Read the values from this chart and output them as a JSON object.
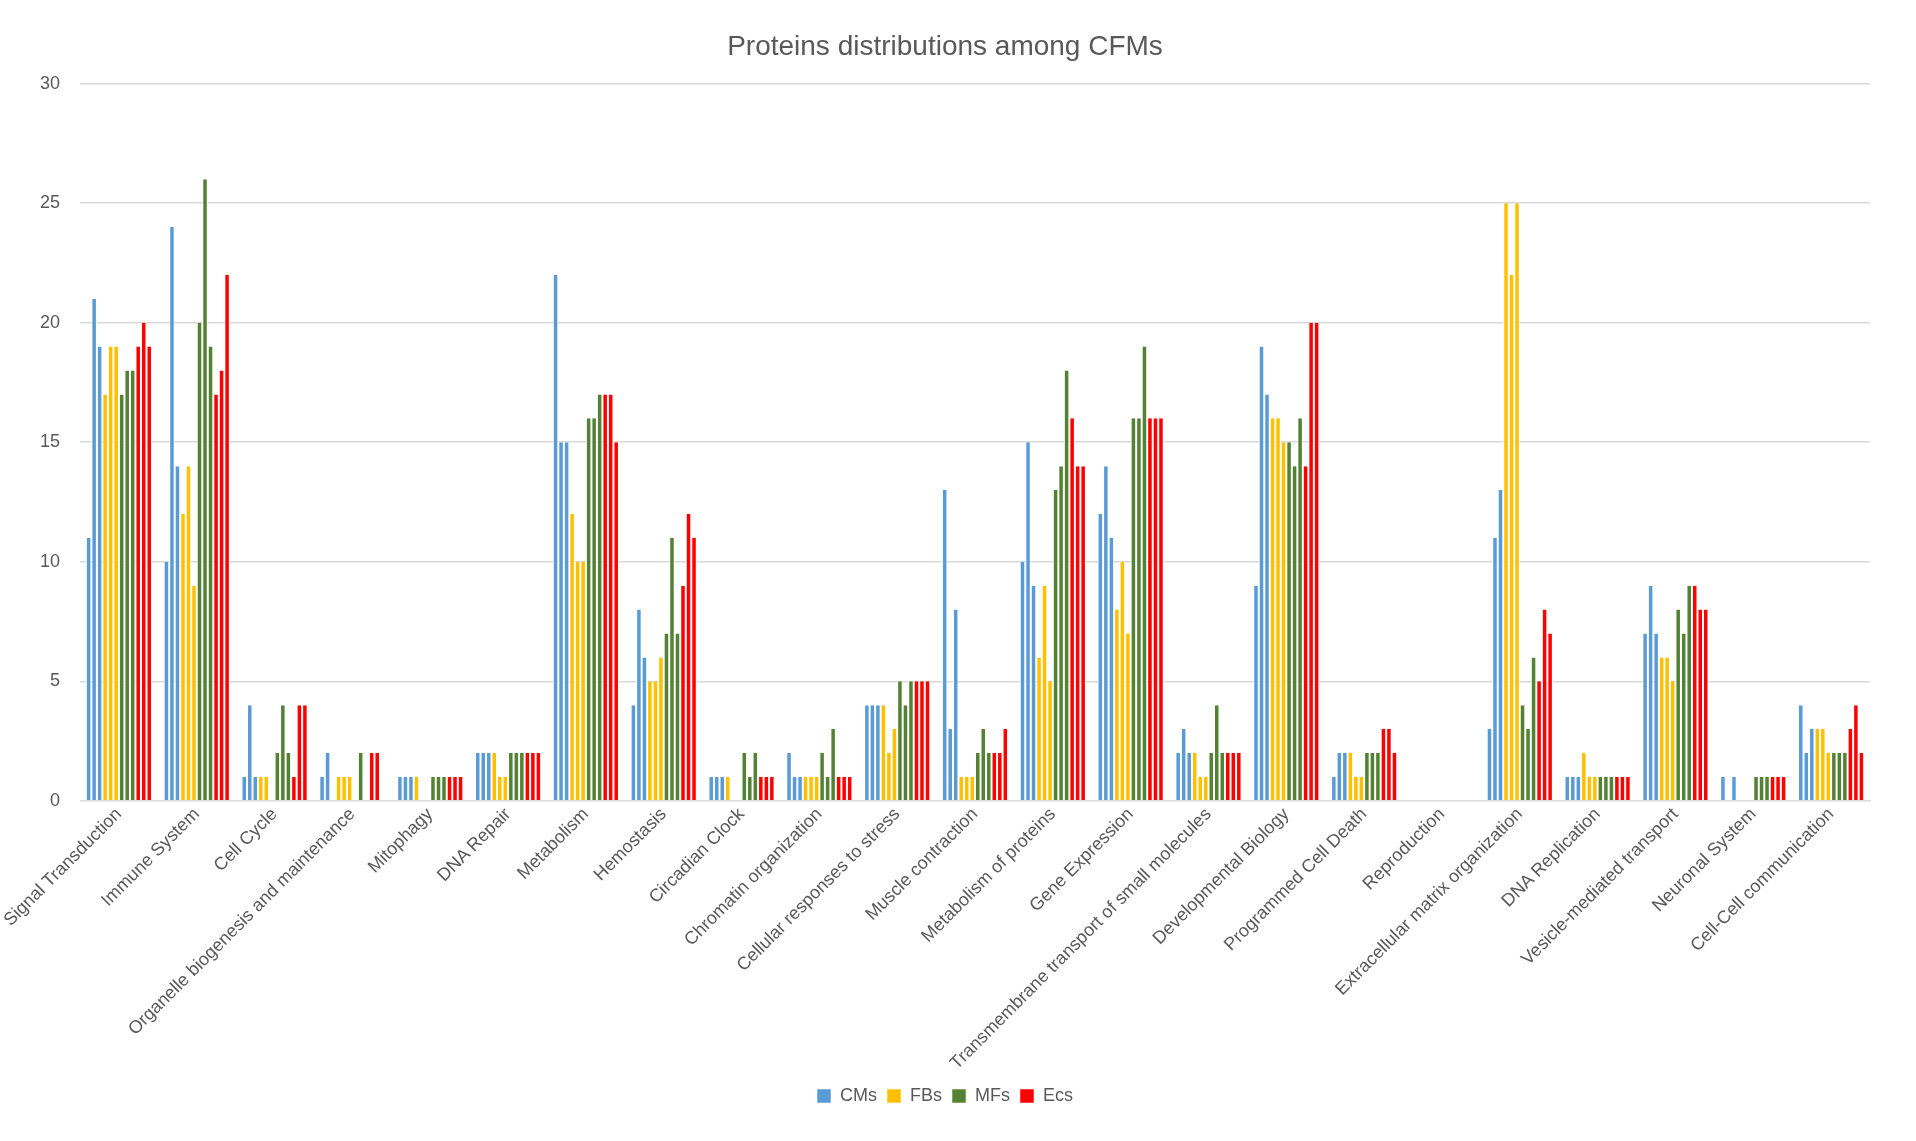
{
  "chart_data": {
    "type": "bar",
    "title": "Proteins distributions among CFMs",
    "categories": [
      "Signal Transduction",
      "Immune System",
      "Cell Cycle",
      "Organelle biogenesis and maintenance",
      "Mitophagy",
      "DNA Repair",
      "Metabolism",
      "Hemostasis",
      "Circadian Clock",
      "Chromatin organization",
      "Cellular responses to stress",
      "Muscle contraction",
      "Metabolism of proteins",
      "Gene Expression",
      "Transmembrane transport of small molecules",
      "Developmental Biology",
      "Programmed Cell Death",
      "Reproduction",
      "Extracellular matrix organization",
      "DNA Replication",
      "Vesicle-mediated transport",
      "Neuronal System",
      "Cell-Cell communication"
    ],
    "series": [
      {
        "name": "CMs",
        "color": "#5b9bd5",
        "values": [
          11,
          10,
          1,
          1,
          1,
          2,
          22,
          4,
          1,
          2,
          4,
          13,
          10,
          12,
          2,
          9,
          1,
          0,
          3,
          1,
          7,
          1,
          4
        ]
      },
      {
        "color": "#5b9bd5",
        "values": [
          21,
          24,
          4,
          2,
          1,
          2,
          15,
          8,
          1,
          1,
          4,
          3,
          15,
          14,
          3,
          19,
          2,
          0,
          11,
          1,
          9,
          0,
          2
        ]
      },
      {
        "color": "#5b9bd5",
        "values": [
          19,
          14,
          1,
          0,
          1,
          2,
          15,
          6,
          1,
          1,
          4,
          8,
          9,
          11,
          2,
          17,
          2,
          0,
          13,
          1,
          7,
          1,
          3
        ]
      },
      {
        "name": "FBs",
        "color": "#ffc000",
        "values": [
          17,
          12,
          1,
          1,
          1,
          2,
          12,
          5,
          1,
          1,
          4,
          1,
          6,
          8,
          2,
          16,
          2,
          0,
          25,
          2,
          6,
          0,
          3
        ]
      },
      {
        "color": "#ffc000",
        "values": [
          19,
          14,
          1,
          1,
          0,
          1,
          10,
          5,
          0,
          1,
          2,
          1,
          9,
          10,
          1,
          16,
          1,
          0,
          22,
          1,
          6,
          0,
          3
        ]
      },
      {
        "color": "#ffc000",
        "values": [
          19,
          9,
          0,
          1,
          0,
          1,
          10,
          6,
          0,
          1,
          3,
          1,
          5,
          7,
          1,
          15,
          1,
          0,
          25,
          1,
          5,
          0,
          2
        ]
      },
      {
        "name": "MFs",
        "color": "#548235",
        "values": [
          17,
          20,
          2,
          0,
          1,
          2,
          16,
          7,
          2,
          2,
          5,
          2,
          13,
          16,
          2,
          15,
          2,
          0,
          4,
          1,
          8,
          1,
          2
        ]
      },
      {
        "color": "#548235",
        "values": [
          18,
          26,
          4,
          2,
          1,
          2,
          16,
          11,
          1,
          1,
          4,
          3,
          14,
          16,
          4,
          14,
          2,
          0,
          3,
          1,
          7,
          1,
          2
        ]
      },
      {
        "color": "#548235",
        "values": [
          18,
          19,
          2,
          0,
          1,
          2,
          17,
          7,
          2,
          3,
          5,
          2,
          18,
          19,
          2,
          16,
          2,
          0,
          6,
          1,
          9,
          1,
          2
        ]
      },
      {
        "name": "Ecs",
        "color": "#ff0000",
        "values": [
          19,
          17,
          1,
          2,
          1,
          2,
          17,
          9,
          1,
          1,
          5,
          2,
          16,
          16,
          2,
          14,
          3,
          0,
          5,
          1,
          9,
          1,
          3
        ]
      },
      {
        "color": "#ff0000",
        "values": [
          20,
          18,
          4,
          2,
          1,
          2,
          17,
          12,
          1,
          1,
          5,
          2,
          14,
          16,
          2,
          20,
          3,
          0,
          8,
          1,
          8,
          1,
          4
        ]
      },
      {
        "color": "#ff0000",
        "values": [
          19,
          22,
          4,
          0,
          1,
          2,
          15,
          11,
          1,
          1,
          5,
          3,
          14,
          16,
          2,
          20,
          2,
          0,
          7,
          1,
          8,
          1,
          2
        ]
      }
    ],
    "ylim": [
      0,
      30
    ],
    "yticks": [
      0,
      5,
      10,
      15,
      20,
      25,
      30
    ],
    "grid": "y",
    "legend": "bottom"
  }
}
